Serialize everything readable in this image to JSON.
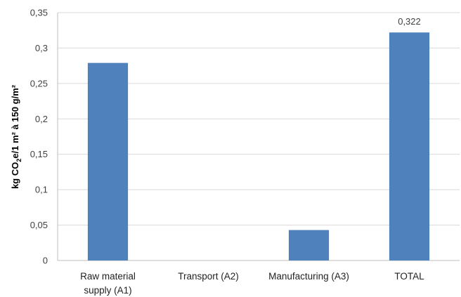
{
  "chart_data": {
    "type": "bar",
    "categories": [
      [
        "Raw material",
        "supply (A1)"
      ],
      [
        "Transport (A2)"
      ],
      [
        "Manufacturing (A3)"
      ],
      [
        "TOTAL"
      ]
    ],
    "values": [
      0.279,
      0.0,
      0.043,
      0.322
    ],
    "data_labels": [
      "",
      "",
      "",
      "0,322"
    ],
    "ylabel": {
      "prefix": "kg CO",
      "sub": "2",
      "suffix": "e/1 m² à 150 g/m²"
    },
    "ylim": [
      0,
      0.35
    ],
    "yticks": [
      0,
      0.05,
      0.1,
      0.15,
      0.2,
      0.25,
      0.3,
      0.35
    ],
    "ytick_labels": [
      "0",
      "0,05",
      "0,1",
      "0,15",
      "0,2",
      "0,25",
      "0,3",
      "0,35"
    ],
    "grid": true,
    "legend": "none",
    "colors": {
      "bar": "#4F81BD",
      "grid": "#D9D9D9",
      "axis": "#BFBFBF"
    }
  }
}
